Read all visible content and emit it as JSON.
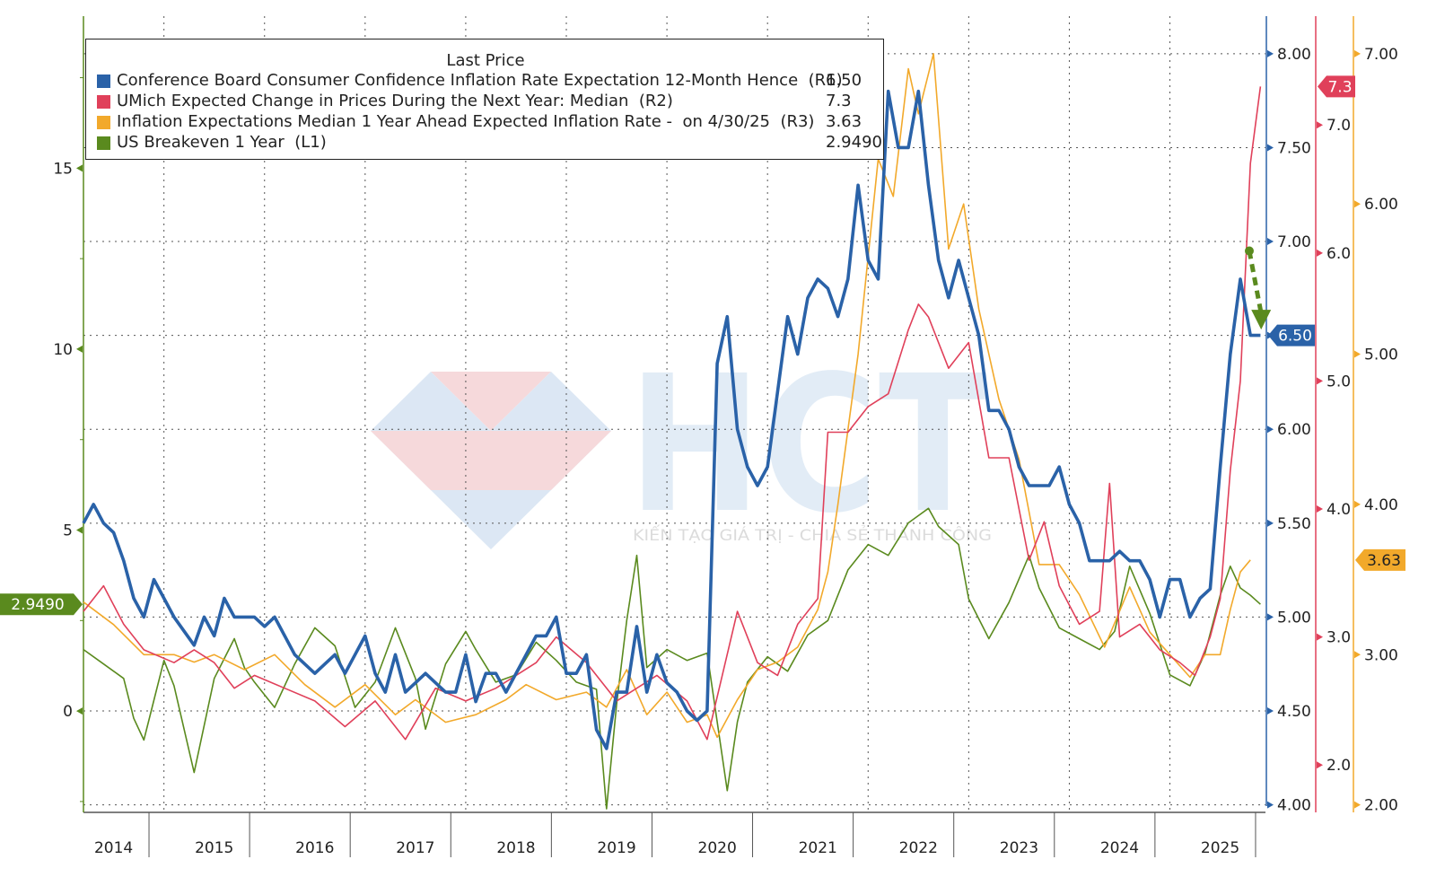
{
  "legend": {
    "title": "Last Price",
    "items": [
      {
        "label": "Conference Board Consumer Confidence Inflation Rate Expectation 12-Month Hence  (R1)",
        "value": "6.50",
        "color": "#2a62a8"
      },
      {
        "label": "UMich Expected Change in Prices During the Next Year: Median  (R2)",
        "value": "7.3",
        "color": "#e0405a"
      },
      {
        "label": "Inflation Expectations Median 1 Year Ahead Expected Inflation Rate -  on 4/30/25  (R3)",
        "value": "3.63",
        "color": "#f2a92b"
      },
      {
        "label": "US Breakeven 1 Year  (L1)",
        "value": "2.9490",
        "color": "#5a8a1e"
      }
    ]
  },
  "watermark": {
    "text": "HCT",
    "tagline": "KIẾN TẠO GIÁ TRỊ - CHIA SẺ THÀNH CÔNG"
  },
  "chart_data": {
    "type": "line",
    "x_range": [
      2013.7,
      2025.45
    ],
    "x_ticks": [
      {
        "label": "2014",
        "x": 2014.0
      },
      {
        "label": "2015",
        "x": 2015.0
      },
      {
        "label": "2016",
        "x": 2016.0
      },
      {
        "label": "2017",
        "x": 2017.0
      },
      {
        "label": "2018",
        "x": 2018.0
      },
      {
        "label": "2019",
        "x": 2019.0
      },
      {
        "label": "2020",
        "x": 2020.0
      },
      {
        "label": "2021",
        "x": 2021.0
      },
      {
        "label": "2022",
        "x": 2022.0
      },
      {
        "label": "2023",
        "x": 2023.0
      },
      {
        "label": "2024",
        "x": 2024.0
      },
      {
        "label": "2025",
        "x": 2025.0
      }
    ],
    "axes": {
      "L1": {
        "range": [
          -2.8,
          19.2
        ],
        "ticks": [
          "0",
          "5",
          "10",
          "15"
        ],
        "tick_values": [
          0,
          5,
          10,
          15
        ],
        "color": "#5a8a1e",
        "last_label": "2.9490",
        "last_value": 2.949
      },
      "R1": {
        "range": [
          3.96,
          8.2
        ],
        "ticks": [
          "4.00",
          "4.50",
          "5.00",
          "5.50",
          "6.00",
          "6.50",
          "7.00",
          "7.50",
          "8.00"
        ],
        "tick_values": [
          4.0,
          4.5,
          5.0,
          5.5,
          6.0,
          6.5,
          7.0,
          7.5,
          8.0
        ],
        "color": "#2a62a8",
        "last_label": "6.50",
        "last_value": 6.5
      },
      "R2": {
        "range": [
          1.63,
          7.85
        ],
        "ticks": [
          "2.0",
          "3.0",
          "4.0",
          "5.0",
          "6.0",
          "7.0"
        ],
        "tick_values": [
          2.0,
          3.0,
          4.0,
          5.0,
          6.0,
          7.0
        ],
        "color": "#e0405a",
        "last_label": "7.3",
        "last_value": 7.3
      },
      "R3": {
        "range": [
          1.95,
          7.25
        ],
        "ticks": [
          "2.00",
          "3.00",
          "4.00",
          "5.00",
          "6.00",
          "7.00"
        ],
        "tick_values": [
          2.0,
          3.0,
          4.0,
          5.0,
          6.0,
          7.0
        ],
        "color": "#f2a92b",
        "last_label": "3.63",
        "last_value": 3.63
      }
    },
    "grid": true,
    "series": [
      {
        "name": "US Breakeven 1 Year  (L1)",
        "axis": "L1",
        "color": "#5a8a1e",
        "x": [
          2013.7,
          2013.9,
          2014.1,
          2014.2,
          2014.3,
          2014.4,
          2014.5,
          2014.6,
          2014.8,
          2015.0,
          2015.2,
          2015.3,
          2015.4,
          2015.6,
          2015.8,
          2016.0,
          2016.2,
          2016.4,
          2016.6,
          2016.8,
          2017.0,
          2017.1,
          2017.3,
          2017.5,
          2017.6,
          2017.8,
          2018.0,
          2018.2,
          2018.4,
          2018.6,
          2018.8,
          2018.9,
          2019.0,
          2019.1,
          2019.2,
          2019.3,
          2019.5,
          2019.7,
          2019.9,
          2020.1,
          2020.2,
          2020.3,
          2020.5,
          2020.7,
          2020.9,
          2021.1,
          2021.3,
          2021.5,
          2021.7,
          2021.9,
          2022.1,
          2022.2,
          2022.4,
          2022.5,
          2022.7,
          2022.9,
          2023.1,
          2023.2,
          2023.4,
          2023.6,
          2023.8,
          2023.95,
          2024.1,
          2024.3,
          2024.5,
          2024.7,
          2024.85,
          2025.0,
          2025.1,
          2025.2,
          2025.3,
          2025.4
        ],
        "values": [
          1.7,
          1.3,
          0.9,
          -0.2,
          -0.8,
          0.3,
          1.4,
          0.7,
          -1.7,
          0.9,
          2.0,
          1.2,
          0.8,
          0.1,
          1.3,
          2.3,
          1.8,
          0.1,
          0.8,
          2.3,
          0.9,
          -0.5,
          1.3,
          2.2,
          1.7,
          0.8,
          1.0,
          1.9,
          1.4,
          0.8,
          0.6,
          -2.7,
          0.2,
          2.5,
          4.3,
          1.2,
          1.7,
          1.4,
          1.6,
          -2.2,
          -0.3,
          0.8,
          1.5,
          1.1,
          2.1,
          2.5,
          3.9,
          4.6,
          4.3,
          5.2,
          5.6,
          5.1,
          4.6,
          3.1,
          2.0,
          3.0,
          4.3,
          3.4,
          2.3,
          2.0,
          1.7,
          2.2,
          4.0,
          2.7,
          1.0,
          0.7,
          1.6,
          3.2,
          4.0,
          3.4,
          3.2,
          2.949
        ]
      },
      {
        "name": "Inflation Expectations Median 1 Year Ahead Expected Inflation Rate -  on 4/30/25  (R3)",
        "axis": "R3",
        "color": "#f2a92b",
        "x": [
          2013.7,
          2014.0,
          2014.3,
          2014.6,
          2014.8,
          2015.0,
          2015.3,
          2015.6,
          2015.9,
          2016.2,
          2016.5,
          2016.8,
          2017.0,
          2017.3,
          2017.6,
          2017.9,
          2018.1,
          2018.4,
          2018.7,
          2018.9,
          2019.1,
          2019.3,
          2019.5,
          2019.7,
          2019.9,
          2020.0,
          2020.2,
          2020.4,
          2020.6,
          2020.8,
          2021.0,
          2021.1,
          2021.2,
          2021.4,
          2021.6,
          2021.75,
          2021.9,
          2022.0,
          2022.15,
          2022.3,
          2022.45,
          2022.6,
          2022.8,
          2023.0,
          2023.2,
          2023.4,
          2023.6,
          2023.85,
          2024.1,
          2024.3,
          2024.5,
          2024.7,
          2024.85,
          2025.0,
          2025.1,
          2025.2,
          2025.3
        ],
        "values": [
          3.35,
          3.2,
          3.0,
          3.0,
          2.95,
          3.0,
          2.9,
          3.0,
          2.8,
          2.65,
          2.8,
          2.6,
          2.7,
          2.55,
          2.6,
          2.7,
          2.8,
          2.7,
          2.75,
          2.65,
          2.9,
          2.6,
          2.75,
          2.55,
          2.6,
          2.45,
          2.7,
          2.9,
          2.95,
          3.05,
          3.3,
          3.55,
          4.0,
          5.0,
          6.3,
          6.05,
          6.9,
          6.6,
          7.0,
          5.7,
          6.0,
          5.3,
          4.7,
          4.3,
          3.6,
          3.6,
          3.4,
          3.05,
          3.45,
          3.15,
          3.0,
          2.85,
          3.0,
          3.0,
          3.3,
          3.55,
          3.63
        ]
      },
      {
        "name": "UMich Expected Change in Prices During the Next Year: Median  (R2)",
        "axis": "R2",
        "color": "#e0405a",
        "x": [
          2013.7,
          2013.9,
          2014.1,
          2014.3,
          2014.6,
          2014.8,
          2015.0,
          2015.2,
          2015.4,
          2015.7,
          2016.0,
          2016.3,
          2016.6,
          2016.9,
          2017.2,
          2017.5,
          2017.8,
          2018.0,
          2018.2,
          2018.4,
          2018.7,
          2019.0,
          2019.2,
          2019.4,
          2019.7,
          2019.9,
          2020.2,
          2020.4,
          2020.6,
          2020.8,
          2021.0,
          2021.1,
          2021.3,
          2021.5,
          2021.7,
          2021.9,
          2022.0,
          2022.1,
          2022.3,
          2022.5,
          2022.7,
          2022.9,
          2023.1,
          2023.25,
          2023.4,
          2023.6,
          2023.8,
          2023.9,
          2024.0,
          2024.2,
          2024.4,
          2024.6,
          2024.75,
          2024.9,
          2025.0,
          2025.1,
          2025.2,
          2025.3,
          2025.4
        ],
        "values": [
          3.2,
          3.4,
          3.1,
          2.9,
          2.8,
          2.9,
          2.8,
          2.6,
          2.7,
          2.6,
          2.5,
          2.3,
          2.5,
          2.2,
          2.6,
          2.5,
          2.6,
          2.7,
          2.8,
          3.0,
          2.8,
          2.5,
          2.6,
          2.7,
          2.5,
          2.2,
          3.2,
          2.8,
          2.7,
          3.1,
          3.3,
          4.6,
          4.6,
          4.8,
          4.9,
          5.4,
          5.6,
          5.5,
          5.1,
          5.3,
          4.4,
          4.4,
          3.6,
          3.9,
          3.4,
          3.1,
          3.2,
          4.2,
          3.0,
          3.1,
          2.9,
          2.8,
          2.7,
          3.0,
          3.3,
          4.3,
          5.0,
          6.7,
          7.3
        ]
      },
      {
        "name": "Conference Board Consumer Confidence Inflation Rate Expectation 12-Month Hence  (R1)",
        "axis": "R1",
        "color": "#2a62a8",
        "x": [
          2013.7,
          2013.8,
          2013.9,
          2014.0,
          2014.1,
          2014.2,
          2014.3,
          2014.4,
          2014.5,
          2014.6,
          2014.8,
          2014.9,
          2015.0,
          2015.1,
          2015.2,
          2015.3,
          2015.4,
          2015.5,
          2015.6,
          2015.8,
          2016.0,
          2016.1,
          2016.2,
          2016.3,
          2016.4,
          2016.5,
          2016.6,
          2016.7,
          2016.8,
          2016.9,
          2017.0,
          2017.1,
          2017.2,
          2017.3,
          2017.4,
          2017.5,
          2017.6,
          2017.7,
          2017.8,
          2017.9,
          2018.0,
          2018.1,
          2018.2,
          2018.3,
          2018.4,
          2018.5,
          2018.6,
          2018.7,
          2018.8,
          2018.9,
          2019.0,
          2019.1,
          2019.2,
          2019.3,
          2019.4,
          2019.5,
          2019.6,
          2019.7,
          2019.8,
          2019.9,
          2020.0,
          2020.1,
          2020.2,
          2020.3,
          2020.4,
          2020.5,
          2020.6,
          2020.7,
          2020.8,
          2020.9,
          2021.0,
          2021.1,
          2021.2,
          2021.3,
          2021.4,
          2021.5,
          2021.6,
          2021.7,
          2021.8,
          2021.9,
          2022.0,
          2022.1,
          2022.2,
          2022.3,
          2022.4,
          2022.5,
          2022.6,
          2022.7,
          2022.8,
          2022.9,
          2023.0,
          2023.1,
          2023.2,
          2023.3,
          2023.4,
          2023.5,
          2023.6,
          2023.7,
          2023.8,
          2023.9,
          2024.0,
          2024.1,
          2024.2,
          2024.3,
          2024.4,
          2024.5,
          2024.6,
          2024.7,
          2024.8,
          2024.9,
          2025.0,
          2025.1,
          2025.2,
          2025.3,
          2025.4
        ],
        "values": [
          5.5,
          5.6,
          5.5,
          5.45,
          5.3,
          5.1,
          5.0,
          5.2,
          5.1,
          5.0,
          4.85,
          5.0,
          4.9,
          5.1,
          5.0,
          5.0,
          5.0,
          4.95,
          5.0,
          4.8,
          4.7,
          4.75,
          4.8,
          4.7,
          4.8,
          4.9,
          4.7,
          4.6,
          4.8,
          4.6,
          4.65,
          4.7,
          4.65,
          4.6,
          4.6,
          4.8,
          4.55,
          4.7,
          4.7,
          4.6,
          4.7,
          4.8,
          4.9,
          4.9,
          5.0,
          4.7,
          4.7,
          4.8,
          4.4,
          4.3,
          4.6,
          4.6,
          4.95,
          4.6,
          4.8,
          4.65,
          4.6,
          4.5,
          4.45,
          4.5,
          6.35,
          6.6,
          6.0,
          5.8,
          5.7,
          5.8,
          6.2,
          6.6,
          6.4,
          6.7,
          6.8,
          6.75,
          6.6,
          6.8,
          7.3,
          6.9,
          6.8,
          7.8,
          7.5,
          7.5,
          7.8,
          7.3,
          6.9,
          6.7,
          6.9,
          6.7,
          6.5,
          6.1,
          6.1,
          6.0,
          5.8,
          5.7,
          5.7,
          5.7,
          5.8,
          5.6,
          5.5,
          5.3,
          5.3,
          5.3,
          5.35,
          5.3,
          5.3,
          5.2,
          5.0,
          5.2,
          5.2,
          5.0,
          5.1,
          5.15,
          5.8,
          6.4,
          6.8,
          6.5,
          6.5
        ]
      }
    ],
    "annotation": {
      "type": "dashed-arrow",
      "color": "#5a8a1e",
      "from": [
        2025.2,
        6.95
      ],
      "to": [
        2025.3,
        6.55
      ]
    }
  }
}
